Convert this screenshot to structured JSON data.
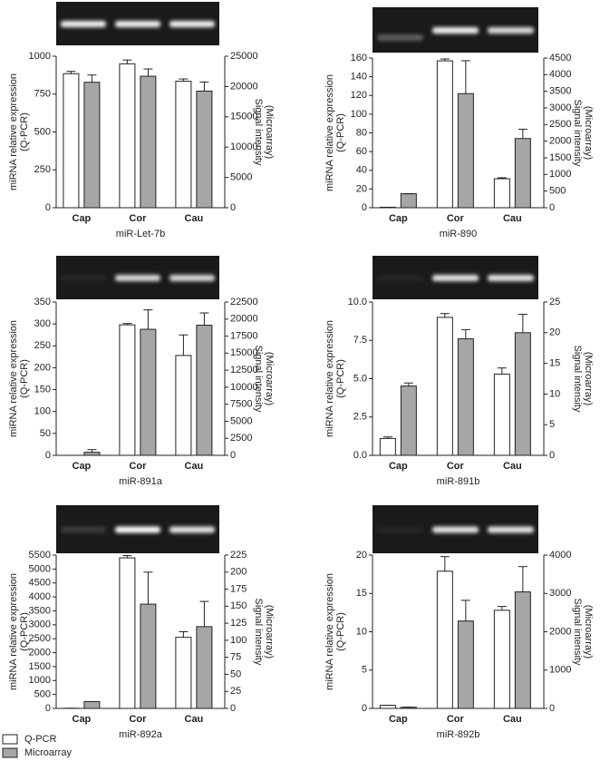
{
  "legend": {
    "entries": [
      {
        "name": "Q-PCR",
        "color": "#ffffff"
      },
      {
        "name": "Microarray",
        "color": "#a6a6a6"
      }
    ]
  },
  "chart_data": [
    {
      "type": "bar",
      "title": "miR-Let-7b",
      "categories": [
        "Cap",
        "Cor",
        "Cau"
      ],
      "ylabel": [
        "miRNA relative expression",
        "(Q-PCR)"
      ],
      "y2label": [
        "Signal intensity",
        "(Microarray)"
      ],
      "series": [
        {
          "values": [
            885,
            950,
            835
          ],
          "errors": [
            15,
            25,
            15
          ]
        },
        {
          "values": [
            20700,
            21700,
            19250
          ],
          "errors": [
            1200,
            1200,
            1500
          ],
          "axis": "y2"
        }
      ],
      "ylim": [
        0,
        1000
      ],
      "yticks": [
        0,
        250,
        500,
        750,
        1000
      ],
      "y2lim": [
        0,
        25000
      ],
      "y2ticks": [
        0,
        5000,
        10000,
        15000,
        20000,
        25000
      ]
    },
    {
      "type": "bar",
      "title": "miR-890",
      "categories": [
        "Cap",
        "Cor",
        "Cau"
      ],
      "ylabel": [
        "miRNA relative expression",
        "(Q-PCR)"
      ],
      "y2label": [
        "Signal intensity",
        "(Microarray)"
      ],
      "series": [
        {
          "values": [
            0.5,
            157,
            31
          ],
          "errors": [
            0,
            2,
            1
          ]
        },
        {
          "values": [
            420,
            3430,
            2080
          ],
          "errors": [
            0,
            990,
            280
          ],
          "axis": "y2"
        }
      ],
      "ylim": [
        0,
        160
      ],
      "yticks": [
        0,
        20,
        40,
        60,
        80,
        100,
        120,
        140,
        160
      ],
      "y2lim": [
        0,
        4500
      ],
      "y2ticks": [
        0,
        500,
        1000,
        1500,
        2000,
        2500,
        3000,
        3500,
        4000,
        4500
      ]
    },
    {
      "type": "bar",
      "title": "miR-891a",
      "categories": [
        "Cap",
        "Cor",
        "Cau"
      ],
      "ylabel": [
        "miRNA relative expression",
        "(Q-PCR)"
      ],
      "y2label": [
        "Signal intensity",
        "(Microarray)"
      ],
      "series": [
        {
          "values": [
            0,
            298,
            228
          ],
          "errors": [
            0,
            3,
            47
          ]
        },
        {
          "values": [
            450,
            18500,
            19100
          ],
          "errors": [
            390,
            2850,
            1800
          ],
          "axis": "y2"
        }
      ],
      "ylim": [
        0,
        350
      ],
      "yticks": [
        0,
        50,
        100,
        150,
        200,
        250,
        300,
        350
      ],
      "y2lim": [
        0,
        22500
      ],
      "y2ticks": [
        0,
        2500,
        5000,
        7500,
        10000,
        12500,
        15000,
        17500,
        20000,
        22500
      ]
    },
    {
      "type": "bar",
      "title": "miR-891b",
      "categories": [
        "Cap",
        "Cor",
        "Cau"
      ],
      "ylabel": [
        "miRNA relative expression",
        "(Q-PCR)"
      ],
      "y2label": [
        "Signal intensity",
        "(Microarray)"
      ],
      "series": [
        {
          "values": [
            1.1,
            9.0,
            5.3
          ],
          "errors": [
            0.1,
            0.25,
            0.4
          ]
        },
        {
          "values": [
            11.3,
            19,
            20
          ],
          "errors": [
            0.5,
            1.5,
            3
          ],
          "axis": "y2"
        }
      ],
      "ylim": [
        0,
        10
      ],
      "yticks": [
        {
          "value": 0,
          "label": "0.0"
        },
        {
          "value": 2.5,
          "label": "2.5"
        },
        {
          "value": 5,
          "label": "5.0"
        },
        {
          "value": 7.5,
          "label": "7.5"
        },
        {
          "value": 10,
          "label": "10.0"
        }
      ],
      "y2lim": [
        0,
        25
      ],
      "y2ticks": [
        0,
        5,
        10,
        15,
        20,
        25
      ]
    },
    {
      "type": "bar",
      "title": "miR-892a",
      "categories": [
        "Cap",
        "Cor",
        "Cau"
      ],
      "ylabel": [
        "miRNA relative expression",
        "(Q-PCR)"
      ],
      "y2label": [
        "Signal intensity",
        "(Microarray)"
      ],
      "series": [
        {
          "values": [
            5,
            5400,
            2550
          ],
          "errors": [
            0,
            80,
            200
          ]
        },
        {
          "values": [
            10,
            153,
            120
          ],
          "errors": [
            0,
            47,
            37
          ],
          "axis": "y2"
        }
      ],
      "ylim": [
        0,
        5500
      ],
      "yticks": [
        0,
        500,
        1000,
        1500,
        2000,
        2500,
        3000,
        3500,
        4000,
        4500,
        5000,
        5500
      ],
      "y2lim": [
        0,
        225
      ],
      "y2ticks": [
        0,
        25,
        50,
        75,
        100,
        125,
        150,
        175,
        200,
        225
      ]
    },
    {
      "type": "bar",
      "title": "miR-892b",
      "categories": [
        "Cap",
        "Cor",
        "Cau"
      ],
      "ylabel": [
        "miRNA relative expression",
        "(Q-PCR)"
      ],
      "y2label": [
        "Signal intensity",
        "(Microarray)"
      ],
      "series": [
        {
          "values": [
            0.4,
            17.9,
            12.8
          ],
          "errors": [
            0,
            1.9,
            0.5
          ]
        },
        {
          "values": [
            30,
            2280,
            3040
          ],
          "errors": [
            0,
            540,
            660
          ],
          "axis": "y2"
        }
      ],
      "ylim": [
        0,
        20
      ],
      "yticks": [
        0,
        5,
        10,
        15,
        20
      ],
      "y2lim": [
        0,
        4000
      ],
      "y2ticks": [
        0,
        1000,
        2000,
        3000,
        4000
      ]
    }
  ]
}
